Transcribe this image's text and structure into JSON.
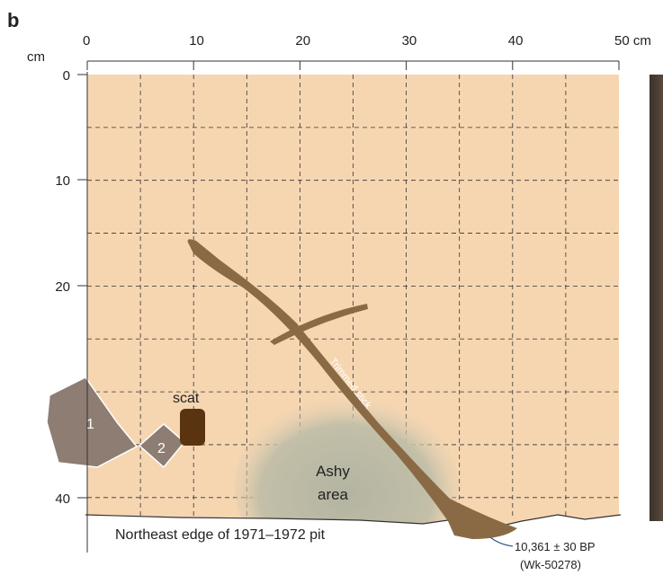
{
  "panel_label": "b",
  "x_axis": {
    "labels": [
      "0",
      "10",
      "20",
      "30",
      "40",
      "50 cm"
    ]
  },
  "y_axis": {
    "unit": "cm",
    "labels": [
      "0",
      "10",
      "20",
      "40"
    ]
  },
  "features": {
    "stone_1": "1",
    "stone_2": "2",
    "scat": "scat",
    "ash": [
      "Ashy",
      "area"
    ],
    "stick": "Trimmed stick"
  },
  "edge_label": "Northeast edge of 1971–1972 pit",
  "date": [
    "10,361 ± 30 BP",
    "(Wk-50278)"
  ]
}
